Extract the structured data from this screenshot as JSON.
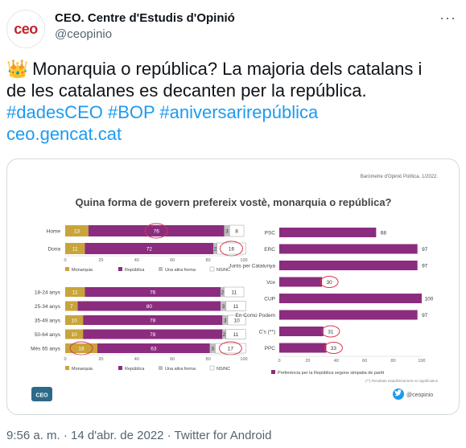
{
  "tweet": {
    "author_name": "CEO. Centre d'Estudis d'Opinió",
    "author_handle": "@ceopinio",
    "avatar_text": "ceo",
    "more_icon": "more-dots-icon",
    "text_line1": "Monarquia o república? La majoria dels catalans i",
    "text_line2": "de les catalanes es decanten per la república.",
    "hashtags": "#dadesCEO #BOP #aniversarirepública",
    "link": "ceo.gencat.cat",
    "timestamp": "9:56 a. m. · 14 d'abr. de 2022 · Twitter for Android",
    "emoji": "👑"
  },
  "infographic": {
    "source_note": "Baròmetre d'Opinió Política. 1/2022.",
    "title": "Quina forma de govern prefereix vostè, monarquia o república?",
    "logo_text": "CEO",
    "twitter_handle": "@ceopinio",
    "footnote": "(**) Resultats estadísticament no significatius",
    "colors": {
      "monarquia": "#c8a43a",
      "republica": "#8b2c7f",
      "altra": "#bfbfbf",
      "nsnc": "#ffffff"
    }
  },
  "chart_data": [
    {
      "type": "bar",
      "stacked": true,
      "orientation": "horizontal",
      "categories": [
        "Home",
        "Dona"
      ],
      "series": [
        {
          "name": "Monarquia",
          "values": [
            13,
            11
          ]
        },
        {
          "name": "República",
          "values": [
            76,
            72
          ]
        },
        {
          "name": "Una altra forma",
          "values": [
            3,
            2
          ]
        },
        {
          "name": "NS/NC",
          "values": [
            8,
            16
          ]
        }
      ],
      "xticks": [
        "0",
        "20",
        "40",
        "60",
        "80",
        "100"
      ],
      "circled": [
        "Home|República",
        "Dona|NS/NC"
      ]
    },
    {
      "type": "bar",
      "stacked": true,
      "orientation": "horizontal",
      "categories": [
        "18-24 anys",
        "25-34 anys",
        "35-49 anys",
        "50-64 anys",
        "Més 65 anys"
      ],
      "series": [
        {
          "name": "Monarquia",
          "values": [
            11,
            7,
            10,
            10,
            18
          ]
        },
        {
          "name": "República",
          "values": [
            76,
            80,
            78,
            78,
            63
          ]
        },
        {
          "name": "Una altra forma",
          "values": [
            2,
            3,
            3,
            2,
            3
          ]
        },
        {
          "name": "NS/NC",
          "values": [
            11,
            11,
            10,
            11,
            17
          ]
        }
      ],
      "xticks": [
        "0",
        "20",
        "40",
        "60",
        "80",
        "100"
      ],
      "legend": [
        "Monarquia",
        "República",
        "Una altra forma",
        "NS/NC"
      ],
      "circled": [
        "Més 65 anys|Monarquia",
        "Més 65 anys|NS/NC"
      ]
    },
    {
      "type": "bar",
      "orientation": "horizontal",
      "categories": [
        "PSC",
        "ERC",
        "Junts per Catalunya",
        "Vox",
        "CUP",
        "En Comú Podem",
        "C's (**)",
        "PPC"
      ],
      "values": [
        68,
        97,
        97,
        30,
        100,
        97,
        31,
        33
      ],
      "xticks": [
        "0",
        "20",
        "40",
        "60",
        "80",
        "100"
      ],
      "legend": [
        "Preferència per la República segons simpatia de partit"
      ],
      "circled": [
        "Vox",
        "C's (**)",
        "PPC"
      ]
    }
  ]
}
